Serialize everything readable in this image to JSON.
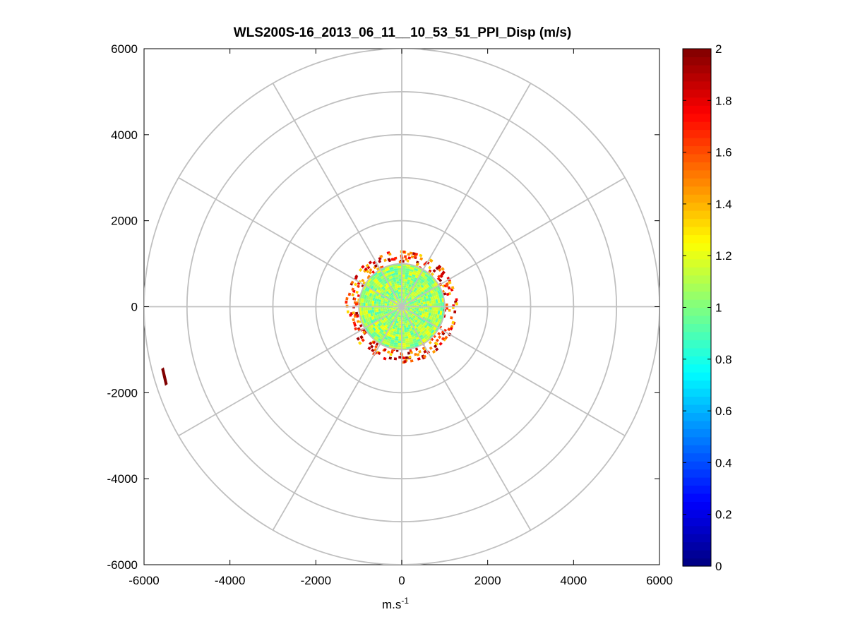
{
  "chart_data": {
    "type": "heatmap",
    "subtype": "polar PPI scan",
    "title": "WLS200S-16_2013_06_11__10_53_51_PPI_Disp (m/s)",
    "xlabel": "m.s",
    "xlabel_superscript": "-1",
    "ylabel": "",
    "xlim": [
      -6000,
      6000
    ],
    "ylim": [
      -6000,
      6000
    ],
    "x_ticks": [
      "-6000",
      "-4000",
      "-2000",
      "0",
      "2000",
      "4000",
      "6000"
    ],
    "y_ticks": [
      "6000",
      "4000",
      "2000",
      "0",
      "-2000",
      "-4000",
      "-6000"
    ],
    "x_tick_values": [
      -6000,
      -4000,
      -2000,
      0,
      2000,
      4000,
      6000
    ],
    "y_tick_values": [
      6000,
      4000,
      2000,
      0,
      -2000,
      -4000,
      -6000
    ],
    "polar_grid": {
      "ring_radii": [
        1000,
        2000,
        3000,
        4000,
        5000,
        6000
      ],
      "spoke_angles_deg": [
        0,
        30,
        60,
        90,
        120,
        150,
        180,
        210,
        240,
        270,
        300,
        330
      ]
    },
    "colorbar": {
      "colormap": "jet",
      "min": 0,
      "max": 2,
      "ticks": [
        "2",
        "1.8",
        "1.6",
        "1.4",
        "1.2",
        "1",
        "0.8",
        "0.6",
        "0.4",
        "0.2",
        "0"
      ],
      "tick_values": [
        2,
        1.8,
        1.6,
        1.4,
        1.2,
        1,
        0.8,
        0.6,
        0.4,
        0.2,
        0
      ]
    },
    "data_regions": [
      {
        "region": "core",
        "range_m": [
          0,
          1000
        ],
        "value_range": [
          0.9,
          1.25
        ]
      },
      {
        "region": "edge",
        "range_m": [
          1000,
          1300
        ],
        "value_range": [
          1.3,
          2.0
        ]
      },
      {
        "region": "outlier",
        "x_range_m": [
          -5600,
          -5450
        ],
        "y_range_m": [
          -1800,
          -1450
        ],
        "value": 2.0
      }
    ]
  }
}
